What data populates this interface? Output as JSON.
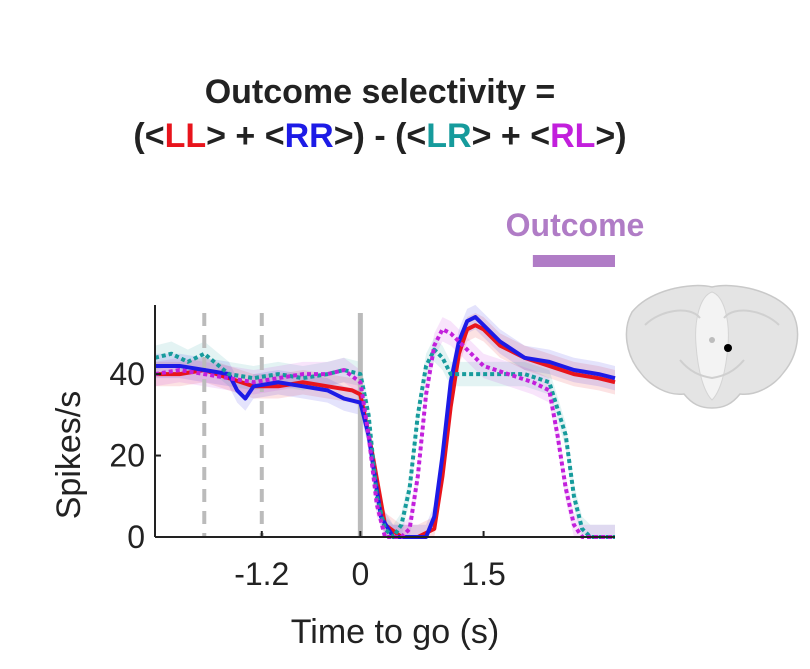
{
  "title": {
    "line1": "Outcome selectivity =",
    "line2_parts": [
      {
        "text": "(<",
        "color": "#222222"
      },
      {
        "text": "LL",
        "color": "#e8141c"
      },
      {
        "text": "> + <",
        "color": "#222222"
      },
      {
        "text": "RR",
        "color": "#1d1be6"
      },
      {
        "text": ">) - (<",
        "color": "#222222"
      },
      {
        "text": "LR",
        "color": "#169b9c"
      },
      {
        "text": "> + <",
        "color": "#222222"
      },
      {
        "text": "RL",
        "color": "#c21fdc"
      },
      {
        "text": ">)",
        "color": "#222222"
      }
    ]
  },
  "chart_data": {
    "type": "line",
    "xlabel": "Time to go (s)",
    "ylabel": "Spikes/s",
    "xlim": [
      -2.5,
      3.1
    ],
    "ylim": [
      0,
      55
    ],
    "xticks": [
      -1.2,
      0,
      1.5
    ],
    "xtick_labels": [
      "-1.2",
      "0",
      "1.5"
    ],
    "yticks": [
      0,
      20,
      40
    ],
    "ytick_labels": [
      "0",
      "20",
      "40"
    ],
    "vlines": [
      {
        "x": -1.9,
        "style": "dashed",
        "color": "#bbbbbb"
      },
      {
        "x": -1.2,
        "style": "dashed",
        "color": "#bbbbbb"
      },
      {
        "x": 0,
        "style": "solid",
        "color": "#bbbbbb"
      }
    ],
    "event_bar": {
      "label": "Outcome",
      "x_start": 2.1,
      "x_end": 3.1,
      "color": "#b07cc6"
    },
    "series": [
      {
        "name": "LL",
        "color": "#e8141c",
        "style": "solid",
        "x": [
          -2.5,
          -2.2,
          -1.9,
          -1.6,
          -1.3,
          -1.0,
          -0.7,
          -0.4,
          -0.1,
          0.0,
          0.15,
          0.3,
          0.5,
          0.7,
          0.9,
          1.0,
          1.1,
          1.2,
          1.3,
          1.4,
          1.5,
          1.7,
          2.0,
          2.3,
          2.6,
          2.9,
          3.1
        ],
        "y": [
          40,
          40,
          41,
          39,
          37,
          37,
          38,
          37,
          36,
          35,
          20,
          3,
          0,
          0,
          2,
          15,
          32,
          45,
          51,
          52,
          51,
          47,
          44,
          42,
          40,
          39,
          38
        ]
      },
      {
        "name": "RR",
        "color": "#1d1be6",
        "style": "solid",
        "x": [
          -2.5,
          -2.2,
          -1.9,
          -1.6,
          -1.5,
          -1.4,
          -1.3,
          -1.0,
          -0.7,
          -0.4,
          -0.2,
          0.0,
          0.1,
          0.25,
          0.4,
          0.6,
          0.8,
          0.9,
          1.0,
          1.1,
          1.2,
          1.3,
          1.4,
          1.5,
          1.7,
          2.0,
          2.3,
          2.6,
          2.9,
          3.1
        ],
        "y": [
          42,
          42,
          41,
          40,
          36,
          34,
          37,
          38,
          37,
          36,
          34,
          33,
          25,
          5,
          0,
          0,
          0,
          5,
          20,
          38,
          48,
          53,
          54,
          52,
          48,
          44,
          43,
          41,
          40,
          39
        ]
      },
      {
        "name": "LR",
        "color": "#169b9c",
        "style": "dotted",
        "x": [
          -2.5,
          -2.3,
          -2.1,
          -1.9,
          -1.6,
          -1.3,
          -1.0,
          -0.7,
          -0.4,
          -0.2,
          0.0,
          0.1,
          0.2,
          0.3,
          0.4,
          0.5,
          0.6,
          0.7,
          0.8,
          0.9,
          1.0,
          1.1,
          1.3,
          1.6,
          2.0,
          2.3,
          2.5,
          2.6,
          2.7,
          2.8,
          2.9,
          3.0,
          3.1
        ],
        "y": [
          44,
          45,
          43,
          45,
          40,
          39,
          40,
          39,
          40,
          41,
          40,
          30,
          10,
          2,
          0,
          3,
          12,
          30,
          42,
          46,
          44,
          40,
          40,
          40,
          40,
          38,
          25,
          10,
          2,
          0,
          0,
          0,
          0
        ]
      },
      {
        "name": "RL",
        "color": "#c21fdc",
        "style": "dotted",
        "x": [
          -2.5,
          -2.2,
          -1.9,
          -1.6,
          -1.3,
          -1.0,
          -0.7,
          -0.4,
          -0.2,
          0.0,
          0.1,
          0.2,
          0.3,
          0.4,
          0.5,
          0.6,
          0.7,
          0.8,
          0.9,
          1.0,
          1.1,
          1.3,
          1.5,
          1.8,
          2.1,
          2.3,
          2.4,
          2.5,
          2.6,
          2.7,
          2.8,
          2.9,
          3.0,
          3.1
        ],
        "y": [
          40,
          41,
          40,
          39,
          38,
          39,
          40,
          40,
          41,
          38,
          25,
          8,
          0,
          0,
          0,
          2,
          15,
          35,
          47,
          51,
          50,
          46,
          42,
          40,
          38,
          36,
          25,
          12,
          3,
          0,
          0,
          0,
          0,
          0
        ]
      }
    ]
  }
}
